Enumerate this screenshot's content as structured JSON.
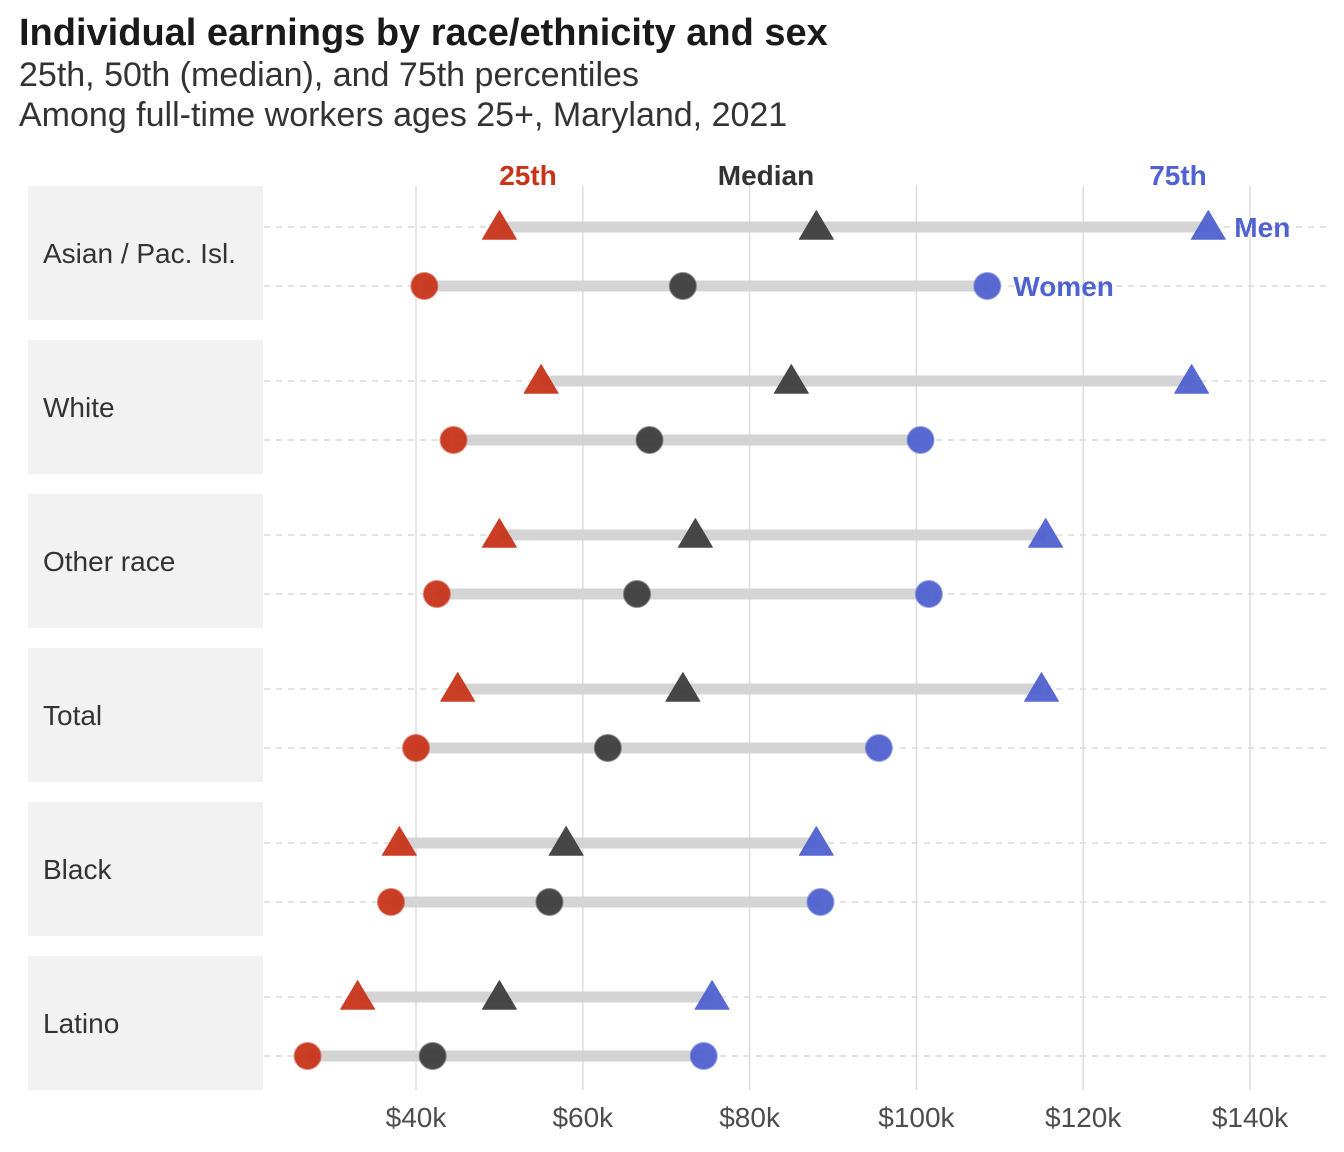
{
  "title": "Individual earnings by race/ethnicity and sex",
  "subtitle_line1": "25th, 50th (median), and 75th percentiles",
  "subtitle_line2": "Among full-time workers ages 25+, Maryland, 2021",
  "colors": {
    "p25": "#C8341A",
    "median": "#3E3E3E",
    "p75": "#5061D0",
    "range_bar": "#D4D4D4",
    "panel_bg": "#F2F2F2",
    "grid": "#DDDDDD"
  },
  "chart_data": {
    "type": "dot-range",
    "x_axis": {
      "ticks": [
        40000,
        60000,
        80000,
        100000,
        120000,
        140000
      ],
      "tick_labels": [
        "$40k",
        "$60k",
        "$80k",
        "$100k",
        "$120k",
        "$140k"
      ],
      "range": [
        22000,
        149000
      ]
    },
    "percentile_labels": {
      "p25": "25th",
      "median": "Median",
      "p75": "75th"
    },
    "sex_labels": {
      "men": "Men",
      "women": "Women"
    },
    "groups": [
      {
        "name": "Asian / Pac. Isl.",
        "men": {
          "p25": 50000,
          "median": 88000,
          "p75": 135000
        },
        "women": {
          "p25": 41000,
          "median": 72000,
          "p75": 108500
        }
      },
      {
        "name": "White",
        "men": {
          "p25": 55000,
          "median": 85000,
          "p75": 133000
        },
        "women": {
          "p25": 44500,
          "median": 68000,
          "p75": 100500
        }
      },
      {
        "name": "Other race",
        "men": {
          "p25": 50000,
          "median": 73500,
          "p75": 115500
        },
        "women": {
          "p25": 42500,
          "median": 66500,
          "p75": 101500
        }
      },
      {
        "name": "Total",
        "men": {
          "p25": 45000,
          "median": 72000,
          "p75": 115000
        },
        "women": {
          "p25": 40000,
          "median": 63000,
          "p75": 95500
        }
      },
      {
        "name": "Black",
        "men": {
          "p25": 38000,
          "median": 58000,
          "p75": 88000
        },
        "women": {
          "p25": 37000,
          "median": 56000,
          "p75": 88500
        }
      },
      {
        "name": "Latino",
        "men": {
          "p25": 33000,
          "median": 50000,
          "p75": 75500
        },
        "women": {
          "p25": 27000,
          "median": 42000,
          "p75": 74500
        }
      }
    ]
  }
}
